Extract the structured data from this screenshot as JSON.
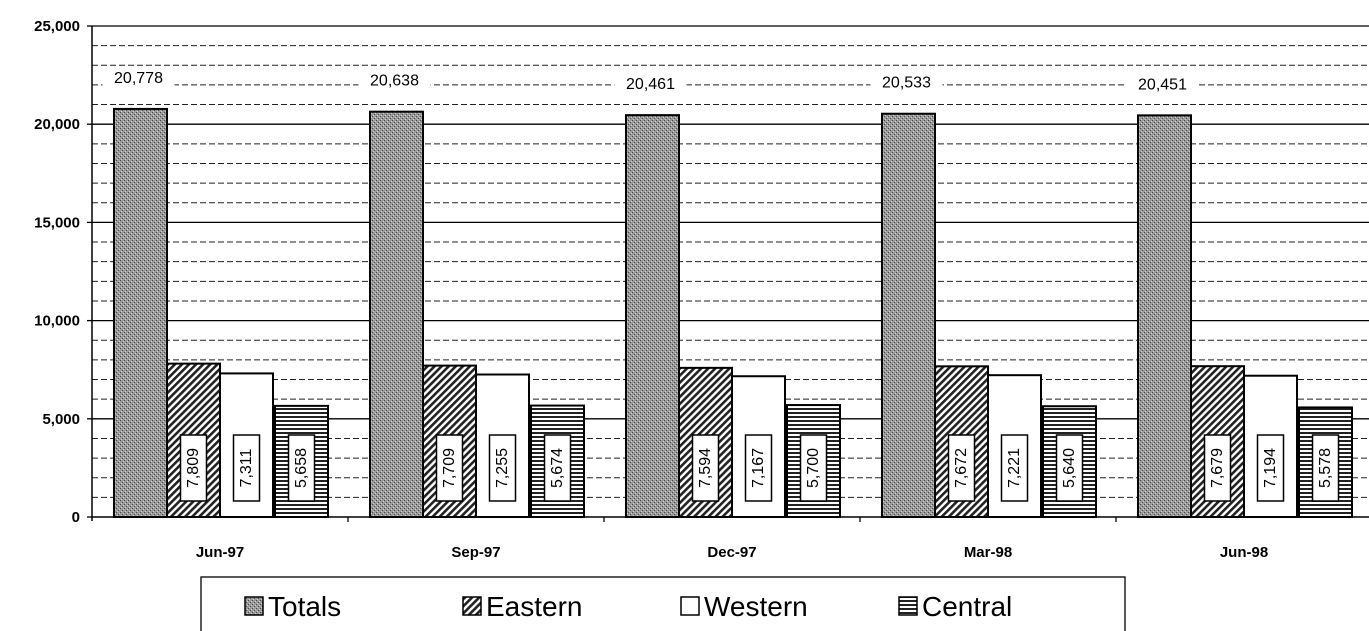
{
  "chart_data": {
    "type": "bar",
    "categories": [
      "Jun-97",
      "Sep-97",
      "Dec-97",
      "Mar-98",
      "Jun-98"
    ],
    "series": [
      {
        "name": "Totals",
        "values": [
          20778,
          20638,
          20461,
          20533,
          20451
        ],
        "labels": [
          "20,778",
          "20,638",
          "20,461",
          "20,533",
          "20,451"
        ],
        "pattern": "stipple"
      },
      {
        "name": "Eastern",
        "values": [
          7809,
          7709,
          7594,
          7672,
          7679
        ],
        "labels": [
          "7,809",
          "7,709",
          "7,594",
          "7,672",
          "7,679"
        ],
        "pattern": "diagonal"
      },
      {
        "name": "Western",
        "values": [
          7311,
          7255,
          7167,
          7221,
          7194
        ],
        "labels": [
          "7,311",
          "7,255",
          "7,167",
          "7,221",
          "7,194"
        ],
        "pattern": "white"
      },
      {
        "name": "Central",
        "values": [
          5658,
          5674,
          5700,
          5640,
          5578
        ],
        "labels": [
          "5,658",
          "5,674",
          "5,700",
          "5,640",
          "5,578"
        ],
        "pattern": "horizontal"
      }
    ],
    "y_ticks": [
      "0",
      "5,000",
      "10,000",
      "15,000",
      "20,000",
      "25,000"
    ],
    "ylim": [
      0,
      25000
    ],
    "title": "",
    "xlabel": "",
    "ylabel": "",
    "grid": true,
    "legend_position": "bottom"
  }
}
